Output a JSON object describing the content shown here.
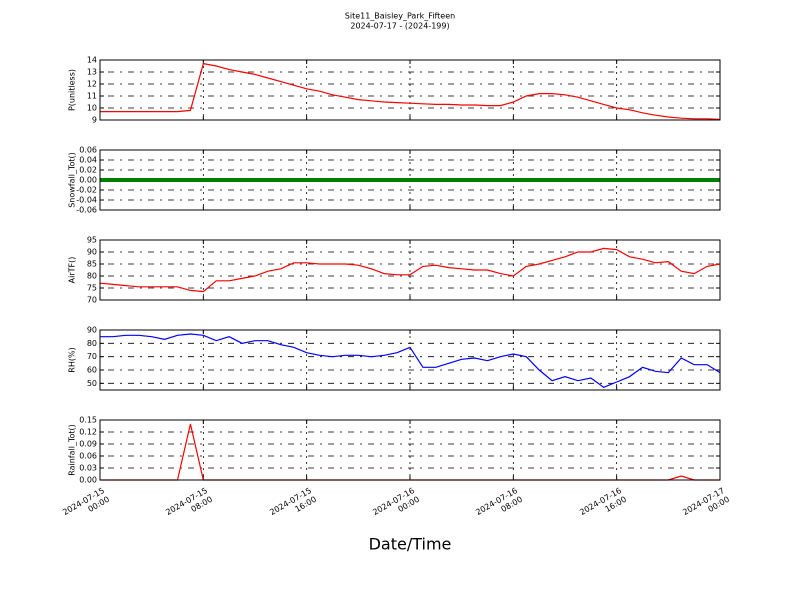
{
  "title": "Site11_Baisley_Park_Fifteen",
  "subtitle": "2024-07-17 - (2024-199)",
  "x_axis": {
    "label": "Date/Time",
    "xlim": [
      "2024-07-15 00:00",
      "2024-07-17 00:00"
    ],
    "xticks": [
      {
        "value": "2024-07-15 00:00",
        "label": "2024-07-15\n00:00"
      },
      {
        "value": "2024-07-15 08:00",
        "label": "2024-07-15\n08:00"
      },
      {
        "value": "2024-07-15 16:00",
        "label": "2024-07-15\n16:00"
      },
      {
        "value": "2024-07-16 00:00",
        "label": "2024-07-16\n00:00"
      },
      {
        "value": "2024-07-16 08:00",
        "label": "2024-07-16\n08:00"
      },
      {
        "value": "2024-07-16 16:00",
        "label": "2024-07-16\n16:00"
      },
      {
        "value": "2024-07-17 00:00",
        "label": "2024-07-17\n00:00"
      }
    ]
  },
  "x": [
    "2024-07-15 00:00",
    "2024-07-15 01:00",
    "2024-07-15 02:00",
    "2024-07-15 03:00",
    "2024-07-15 04:00",
    "2024-07-15 05:00",
    "2024-07-15 06:00",
    "2024-07-15 07:00",
    "2024-07-15 08:00",
    "2024-07-15 09:00",
    "2024-07-15 10:00",
    "2024-07-15 11:00",
    "2024-07-15 12:00",
    "2024-07-15 13:00",
    "2024-07-15 14:00",
    "2024-07-15 15:00",
    "2024-07-15 16:00",
    "2024-07-15 17:00",
    "2024-07-15 18:00",
    "2024-07-15 19:00",
    "2024-07-15 20:00",
    "2024-07-15 21:00",
    "2024-07-15 22:00",
    "2024-07-15 23:00",
    "2024-07-16 00:00",
    "2024-07-16 01:00",
    "2024-07-16 02:00",
    "2024-07-16 03:00",
    "2024-07-16 04:00",
    "2024-07-16 05:00",
    "2024-07-16 06:00",
    "2024-07-16 07:00",
    "2024-07-16 08:00",
    "2024-07-16 09:00",
    "2024-07-16 10:00",
    "2024-07-16 11:00",
    "2024-07-16 12:00",
    "2024-07-16 13:00",
    "2024-07-16 14:00",
    "2024-07-16 15:00",
    "2024-07-16 16:00",
    "2024-07-16 17:00",
    "2024-07-16 18:00",
    "2024-07-16 19:00",
    "2024-07-16 20:00",
    "2024-07-16 21:00",
    "2024-07-16 22:00",
    "2024-07-16 23:00",
    "2024-07-17 00:00"
  ],
  "chart_data": [
    {
      "type": "line",
      "y_label": "P(unitless)",
      "ylim": [
        9,
        14
      ],
      "yticks": [
        9,
        10,
        11,
        12,
        13,
        14
      ],
      "grid": true,
      "series": [
        {
          "color": "#ff0000",
          "values": [
            9.7,
            9.7,
            9.7,
            9.7,
            9.7,
            9.7,
            9.7,
            9.8,
            13.7,
            13.5,
            13.2,
            13.0,
            12.8,
            12.5,
            12.2,
            11.9,
            11.6,
            11.4,
            11.1,
            10.9,
            10.7,
            10.6,
            10.5,
            10.45,
            10.4,
            10.35,
            10.3,
            10.3,
            10.25,
            10.25,
            10.2,
            10.2,
            10.5,
            11.0,
            11.2,
            11.2,
            11.1,
            10.9,
            10.6,
            10.3,
            10.0,
            9.85,
            9.6,
            9.4,
            9.25,
            9.15,
            9.1,
            9.1,
            9.05
          ]
        }
      ]
    },
    {
      "type": "line",
      "y_label": "Snowfall_Tot()",
      "ylim": [
        -0.06,
        0.06
      ],
      "yticks": [
        -0.06,
        -0.04,
        -0.02,
        {
          "value": 0,
          "label": "0.00"
        },
        0.02,
        0.04,
        0.06
      ],
      "grid": true,
      "series": [
        {
          "color": "#008000",
          "values": [
            0,
            0,
            0,
            0,
            0,
            0,
            0,
            0,
            0,
            0,
            0,
            0,
            0,
            0,
            0,
            0,
            0,
            0,
            0,
            0,
            0,
            0,
            0,
            0,
            0,
            0,
            0,
            0,
            0,
            0,
            0,
            0,
            0,
            0,
            0,
            0,
            0,
            0,
            0,
            0,
            0,
            0,
            0,
            0,
            0,
            0,
            0,
            0,
            0
          ]
        }
      ]
    },
    {
      "type": "line",
      "y_label": "AirTF()",
      "ylim": [
        70,
        95
      ],
      "yticks": [
        70,
        75,
        80,
        85,
        90,
        95
      ],
      "grid": true,
      "series": [
        {
          "color": "#ff0000",
          "values": [
            77,
            76.5,
            76,
            75.5,
            75.5,
            75.5,
            75.5,
            74,
            73.5,
            78,
            78,
            79,
            80,
            82,
            83,
            85.5,
            85.5,
            85,
            85,
            85,
            84.5,
            83,
            81,
            80.5,
            80.5,
            84,
            84.5,
            83.5,
            83,
            82.5,
            82.5,
            81,
            80,
            84,
            85,
            86.5,
            88,
            90,
            90,
            91.5,
            91,
            88,
            87,
            85.5,
            86,
            82,
            81,
            84,
            85
          ]
        }
      ]
    },
    {
      "type": "line",
      "y_label": "RH(%)",
      "ylim": [
        45,
        90
      ],
      "yticks": [
        50,
        60,
        70,
        80,
        90
      ],
      "grid": true,
      "series": [
        {
          "color": "#0000ff",
          "values": [
            85,
            85,
            86,
            86,
            85,
            83,
            86,
            87,
            86,
            82,
            85,
            80,
            82,
            82,
            79,
            77,
            73,
            71,
            70,
            71,
            71,
            70,
            71,
            73,
            77,
            62,
            62,
            65,
            68,
            69,
            67,
            70,
            72,
            70,
            60,
            52,
            55,
            52,
            54,
            47,
            51,
            55,
            62,
            59,
            58,
            69,
            64,
            64,
            58
          ]
        }
      ]
    },
    {
      "type": "line",
      "y_label": "Rainfall_Tot()",
      "ylim": [
        0,
        0.15
      ],
      "yticks": [
        {
          "value": 0,
          "label": "0.00"
        },
        0.03,
        0.06,
        0.09,
        0.12,
        0.15
      ],
      "grid": true,
      "series": [
        {
          "color": "#ff0000",
          "values": [
            0,
            0,
            0,
            0,
            0,
            0,
            0,
            0.14,
            0,
            0,
            0,
            0,
            0,
            0,
            0,
            0,
            0,
            0,
            0,
            0,
            0,
            0,
            0,
            0,
            0,
            0,
            0,
            0,
            0,
            0,
            0,
            0,
            0,
            0,
            0,
            0,
            0,
            0,
            0,
            0,
            0,
            0,
            0,
            0,
            0,
            0.01,
            0,
            0,
            0
          ]
        }
      ]
    }
  ]
}
